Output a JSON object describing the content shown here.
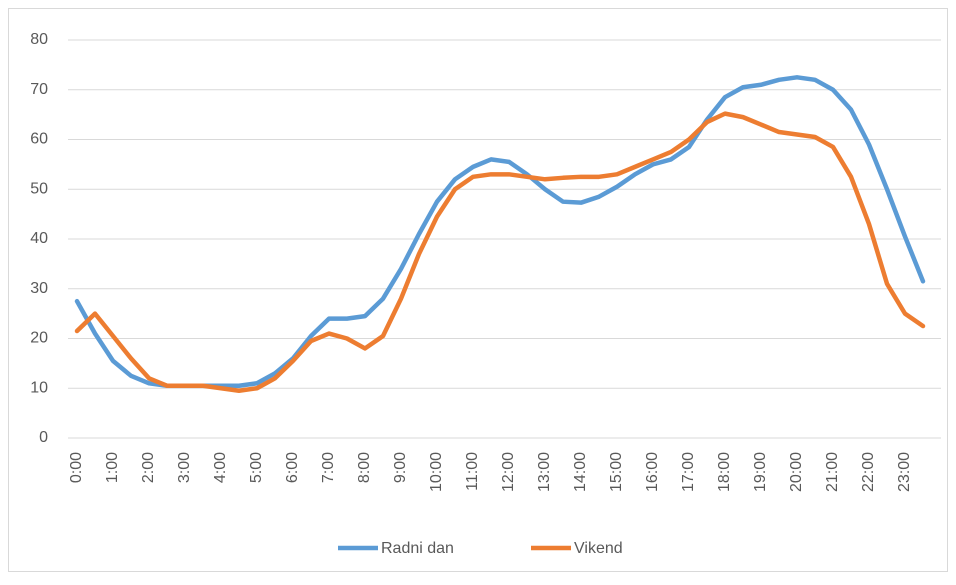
{
  "chart_data": {
    "type": "line",
    "categories": [
      "0:00",
      null,
      "1:00",
      null,
      "2:00",
      null,
      "3:00",
      null,
      "4:00",
      null,
      "5:00",
      null,
      "6:00",
      null,
      "7:00",
      null,
      "8:00",
      null,
      "9:00",
      null,
      "10:00",
      null,
      "11:00",
      null,
      "12:00",
      null,
      "13:00",
      null,
      "14:00",
      null,
      "15:00",
      null,
      "16:00",
      null,
      "17:00",
      null,
      "18:00",
      null,
      "19:00",
      null,
      "20:00",
      null,
      "21:00",
      null,
      "22:00",
      null,
      "23:00",
      null
    ],
    "series": [
      {
        "name": "Radni dan",
        "color": "#5b9bd5",
        "values": [
          27.5,
          21,
          15.5,
          12.5,
          11,
          10.5,
          10.5,
          10.5,
          10.5,
          10.5,
          11,
          13,
          16,
          20.5,
          24,
          24,
          24.5,
          28,
          34,
          41,
          47.5,
          52,
          54.5,
          56,
          55.5,
          53,
          50,
          47.5,
          47.3,
          48.5,
          50.5,
          53,
          55,
          56,
          58.5,
          64,
          68.5,
          70.5,
          71,
          72,
          72.5,
          72,
          70,
          66,
          59,
          50,
          40.5,
          31.5
        ]
      },
      {
        "name": "Vikend",
        "color": "#ed7d31",
        "values": [
          21.5,
          25,
          20.5,
          16,
          12,
          10.5,
          10.5,
          10.5,
          10,
          9.5,
          10,
          12,
          15.5,
          19.5,
          21,
          20,
          18,
          20.5,
          28,
          37,
          44.5,
          50,
          52.5,
          53,
          53,
          52.5,
          52,
          52.3,
          52.5,
          52.5,
          53,
          54.5,
          56,
          57.5,
          60,
          63.5,
          65.2,
          64.5,
          63,
          61.5,
          61,
          60.5,
          58.5,
          52.5,
          43,
          31,
          25,
          22.5
        ]
      }
    ],
    "ylim": [
      0,
      80
    ],
    "yticks": [
      0,
      10,
      20,
      30,
      40,
      50,
      60,
      70,
      80
    ],
    "grid": true,
    "legend": "bottom"
  }
}
